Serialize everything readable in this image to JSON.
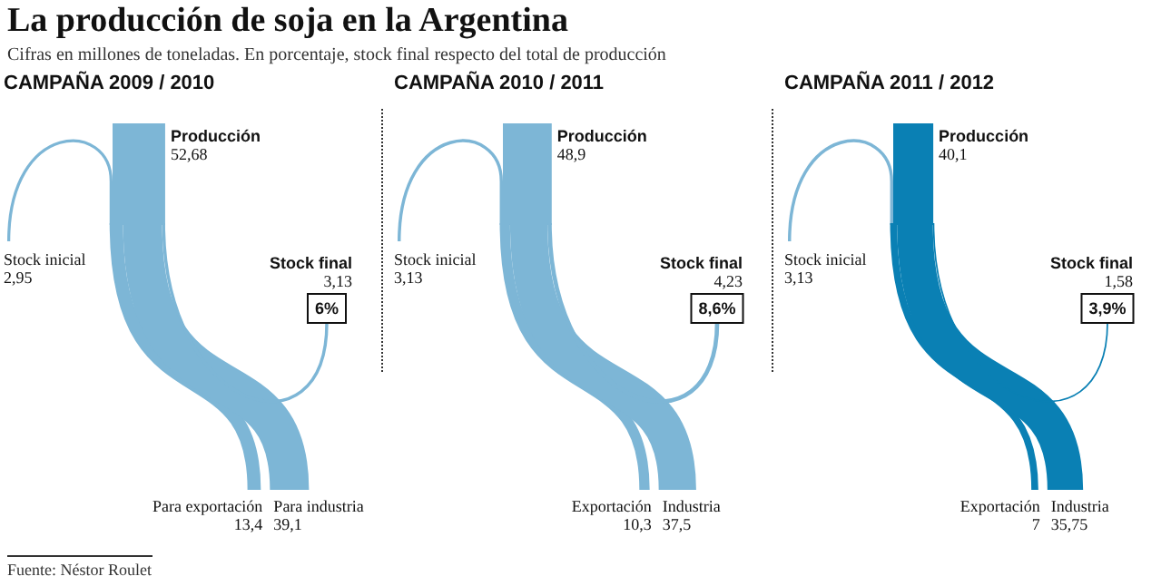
{
  "chart_data": [
    {
      "type": "other",
      "title": "La producción de soja en la Argentina",
      "subtitle": "Cifras en millones de toneladas. En porcentaje, stock final respecto del total de producción",
      "annotations": [
        "Fuente: Néstor Roulet"
      ]
    },
    {
      "type": "other",
      "title": "CAMPAÑA 2009 / 2010",
      "categories": [
        "Stock inicial",
        "Producción",
        "Stock final",
        "Para exportación",
        "Para industria"
      ],
      "values": [
        2.95,
        52.68,
        3.13,
        13.4,
        39.1
      ],
      "value_labels": [
        "2,95",
        "52,68",
        "3,13",
        "13,4",
        "39,1"
      ],
      "colors": [
        "#7db6d6",
        "#7db6d6",
        "#7db6d6",
        "#7db6d6",
        "#7db6d6"
      ],
      "annotations": [
        "6%"
      ]
    },
    {
      "type": "other",
      "title": "CAMPAÑA 2010 / 2011",
      "categories": [
        "Stock inicial",
        "Producción",
        "Stock final",
        "Exportación",
        "Industria"
      ],
      "values": [
        3.13,
        48.9,
        4.23,
        10.3,
        37.5
      ],
      "value_labels": [
        "3,13",
        "48,9",
        "4,23",
        "10,3",
        "37,5"
      ],
      "colors": [
        "#7db6d6",
        "#7db6d6",
        "#7db6d6",
        "#7db6d6",
        "#7db6d6"
      ],
      "annotations": [
        "8,6%"
      ]
    },
    {
      "type": "other",
      "title": "CAMPAÑA 2011 / 2012",
      "categories": [
        "Stock inicial",
        "Producción",
        "Stock final",
        "Exportación",
        "Industria"
      ],
      "values": [
        3.13,
        40.1,
        1.58,
        7,
        35.75
      ],
      "value_labels": [
        "3,13",
        "40,1",
        "1,58",
        "7",
        "35,75"
      ],
      "colors": [
        "#7db6d6",
        "#0a80b4",
        "#0a80b4",
        "#0a80b4",
        "#0a80b4"
      ],
      "annotations": [
        "3,9%"
      ]
    }
  ]
}
